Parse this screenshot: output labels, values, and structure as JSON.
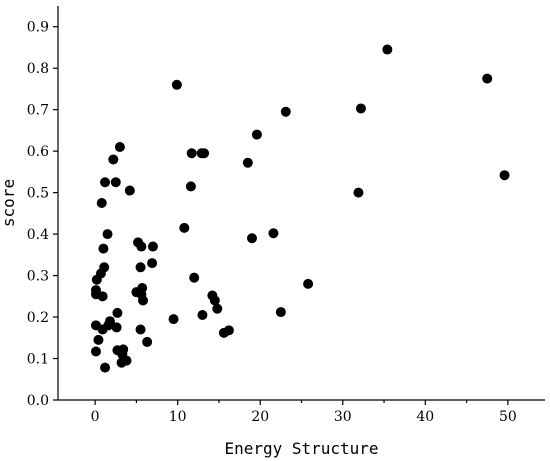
{
  "chart_data": {
    "type": "scatter",
    "title": "",
    "xlabel": "Energy Structure",
    "ylabel": "score",
    "xlim": [
      -4.5,
      54.5
    ],
    "ylim": [
      0,
      0.95
    ],
    "x_ticks": [
      0,
      10,
      20,
      30,
      40,
      50
    ],
    "x_tick_labels": [
      "0",
      "10",
      "20",
      "30",
      "40",
      "50"
    ],
    "y_ticks": [
      0,
      0.1,
      0.2,
      0.3,
      0.4,
      0.5,
      0.6,
      0.7,
      0.8,
      0.9
    ],
    "y_tick_labels": [
      "0.0",
      "0.1",
      "0.2",
      "0.3",
      "0.4",
      "0.5",
      "0.6",
      "0.7",
      "0.8",
      "0.9"
    ],
    "grid": false,
    "legend": "none",
    "marker_color": "#000000",
    "series": [
      {
        "points": [
          [
            0.2,
            0.29
          ],
          [
            0.1,
            0.265
          ],
          [
            0.1,
            0.255
          ],
          [
            0.1,
            0.18
          ],
          [
            0.1,
            0.117
          ],
          [
            0.4,
            0.145
          ],
          [
            0.8,
            0.475
          ],
          [
            0.7,
            0.305
          ],
          [
            0.9,
            0.25
          ],
          [
            0.9,
            0.17
          ],
          [
            1.0,
            0.365
          ],
          [
            1.1,
            0.32
          ],
          [
            1.2,
            0.525
          ],
          [
            1.2,
            0.078
          ],
          [
            1.5,
            0.4
          ],
          [
            1.6,
            0.18
          ],
          [
            1.8,
            0.19
          ],
          [
            2.2,
            0.58
          ],
          [
            2.5,
            0.525
          ],
          [
            2.7,
            0.21
          ],
          [
            2.6,
            0.175
          ],
          [
            2.7,
            0.12
          ],
          [
            3.0,
            0.61
          ],
          [
            3.2,
            0.09
          ],
          [
            3.3,
            0.11
          ],
          [
            3.4,
            0.122
          ],
          [
            3.8,
            0.095
          ],
          [
            4.2,
            0.505
          ],
          [
            5.0,
            0.26
          ],
          [
            5.2,
            0.38
          ],
          [
            5.5,
            0.32
          ],
          [
            5.6,
            0.37
          ],
          [
            5.6,
            0.255
          ],
          [
            5.7,
            0.27
          ],
          [
            5.8,
            0.24
          ],
          [
            5.5,
            0.17
          ],
          [
            6.3,
            0.14
          ],
          [
            7.0,
            0.37
          ],
          [
            6.9,
            0.33
          ],
          [
            9.5,
            0.195
          ],
          [
            9.9,
            0.76
          ],
          [
            10.8,
            0.415
          ],
          [
            11.6,
            0.515
          ],
          [
            11.7,
            0.595
          ],
          [
            12.0,
            0.295
          ],
          [
            12.9,
            0.595
          ],
          [
            13.2,
            0.595
          ],
          [
            13.0,
            0.205
          ],
          [
            14.2,
            0.252
          ],
          [
            14.5,
            0.24
          ],
          [
            14.8,
            0.22
          ],
          [
            15.6,
            0.162
          ],
          [
            16.2,
            0.168
          ],
          [
            18.5,
            0.572
          ],
          [
            19.0,
            0.39
          ],
          [
            19.6,
            0.64
          ],
          [
            21.6,
            0.402
          ],
          [
            22.5,
            0.212
          ],
          [
            23.1,
            0.695
          ],
          [
            25.8,
            0.28
          ],
          [
            31.9,
            0.5
          ],
          [
            32.2,
            0.703
          ],
          [
            35.4,
            0.845
          ],
          [
            47.5,
            0.775
          ],
          [
            49.6,
            0.542
          ]
        ]
      }
    ]
  }
}
